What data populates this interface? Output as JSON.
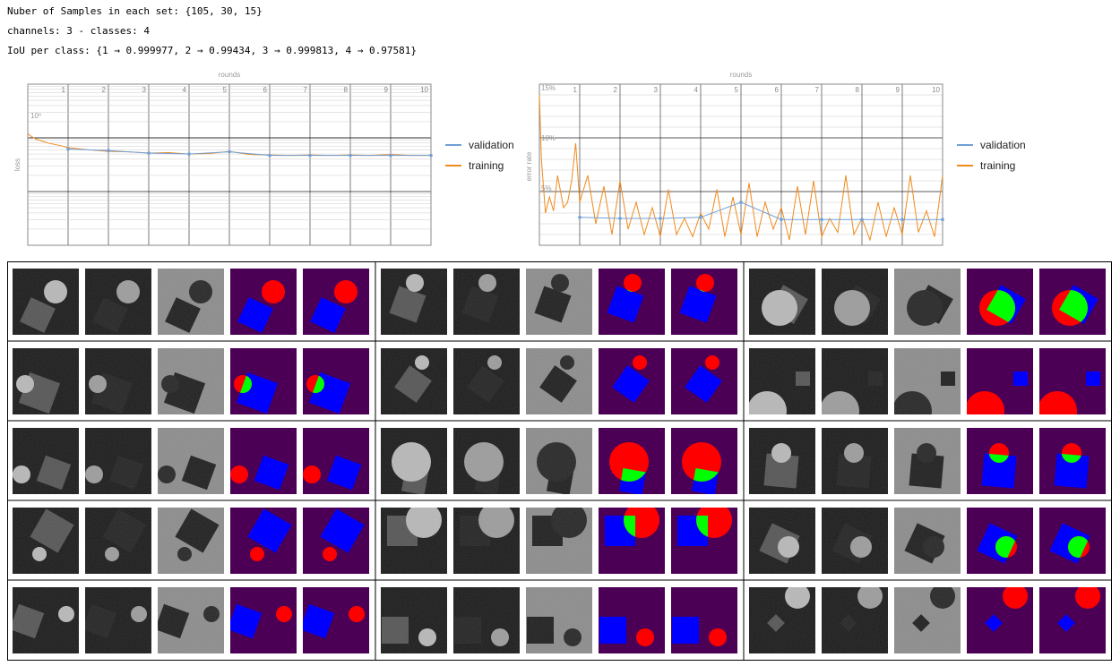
{
  "header": {
    "samples_line": "Nuber of Samples in each set: {105, 30, 15}",
    "channels_line": "channels: 3 - classes: 4",
    "iou_line": "IoU per class: {1 → 0.999977, 2 → 0.99434, 3 → 0.999813, 4 → 0.97581}"
  },
  "colors": {
    "validation": "#6f9fd8",
    "training": "#f08a1c",
    "mask_background": "#4b0055",
    "mask_square": "#0000ff",
    "mask_circle": "#ff0000",
    "mask_overlap": "#00ff00"
  },
  "chart_data": [
    {
      "type": "line",
      "title": "",
      "xlabel": "rounds",
      "ylabel": "loss",
      "y_scale": "log",
      "x_ticks": [
        "1",
        "2",
        "3",
        "4",
        "5",
        "6",
        "7",
        "8",
        "9",
        "10"
      ],
      "y_tick_label": "10⁰",
      "xlim": [
        0,
        10
      ],
      "ylim": [
        0.01,
        10
      ],
      "grid": true,
      "legend_position": "right",
      "series": [
        {
          "name": "validation",
          "x": [
            1,
            2,
            3,
            4,
            5,
            6,
            7,
            8,
            9,
            10
          ],
          "y": [
            0.62,
            0.58,
            0.52,
            0.5,
            0.55,
            0.47,
            0.47,
            0.47,
            0.47,
            0.47
          ]
        },
        {
          "name": "training",
          "x": [
            0,
            0.1,
            0.2,
            0.3,
            0.5,
            0.8,
            1.0,
            1.5,
            2.0,
            2.5,
            3.0,
            3.5,
            4.0,
            4.5,
            5.0,
            5.5,
            6.0,
            6.5,
            7.0,
            7.5,
            8.0,
            8.5,
            9.0,
            9.5,
            10.0
          ],
          "y": [
            1.2,
            1.05,
            0.95,
            0.9,
            0.8,
            0.72,
            0.66,
            0.6,
            0.56,
            0.55,
            0.52,
            0.53,
            0.5,
            0.51,
            0.56,
            0.49,
            0.48,
            0.47,
            0.48,
            0.47,
            0.48,
            0.47,
            0.49,
            0.47,
            0.47
          ]
        }
      ]
    },
    {
      "type": "line",
      "title": "",
      "xlabel": "rounds",
      "ylabel": "error rate",
      "x_ticks": [
        "1",
        "2",
        "3",
        "4",
        "5",
        "6",
        "7",
        "8",
        "9",
        "10"
      ],
      "y_tick_labels": [
        "15%",
        "10%",
        "5%"
      ],
      "xlim": [
        0,
        10
      ],
      "ylim": [
        0,
        15
      ],
      "grid": true,
      "legend_position": "right",
      "series": [
        {
          "name": "validation",
          "x": [
            1,
            2,
            3,
            4,
            5,
            6,
            7,
            8,
            9,
            10
          ],
          "y": [
            2.6,
            2.5,
            2.5,
            2.6,
            4.0,
            2.4,
            2.4,
            2.4,
            2.4,
            2.4
          ]
        },
        {
          "name": "training",
          "x": [
            0,
            0.05,
            0.15,
            0.25,
            0.35,
            0.45,
            0.6,
            0.7,
            0.8,
            0.9,
            1.0,
            1.2,
            1.4,
            1.6,
            1.8,
            2.0,
            2.2,
            2.4,
            2.6,
            2.8,
            3.0,
            3.2,
            3.4,
            3.6,
            3.8,
            4.0,
            4.2,
            4.4,
            4.6,
            4.8,
            5.0,
            5.2,
            5.4,
            5.6,
            5.8,
            6.0,
            6.2,
            6.4,
            6.6,
            6.8,
            7.0,
            7.2,
            7.4,
            7.6,
            7.8,
            8.0,
            8.2,
            8.4,
            8.6,
            8.8,
            9.0,
            9.2,
            9.4,
            9.6,
            9.8,
            10.0
          ],
          "y": [
            14.0,
            8.0,
            3.0,
            4.5,
            3.2,
            6.5,
            3.5,
            4.0,
            6.0,
            9.5,
            4.0,
            6.5,
            2.0,
            5.5,
            1.0,
            6.0,
            1.5,
            4.0,
            1.0,
            3.5,
            0.8,
            5.2,
            1.0,
            2.5,
            0.8,
            3.0,
            1.5,
            5.2,
            0.8,
            4.5,
            1.0,
            5.8,
            0.8,
            4.0,
            1.5,
            3.5,
            0.5,
            5.5,
            1.0,
            6.0,
            0.8,
            2.5,
            1.2,
            6.5,
            1.0,
            2.5,
            0.5,
            4.0,
            0.8,
            3.5,
            1.0,
            6.5,
            1.2,
            3.2,
            0.8,
            6.5
          ]
        }
      ]
    }
  ],
  "sample_grid": {
    "rows": 5,
    "groups": 3,
    "panels_per_group": [
      "image",
      "channel_1",
      "channel_2",
      "ground_truth_mask",
      "predicted_mask"
    ]
  }
}
